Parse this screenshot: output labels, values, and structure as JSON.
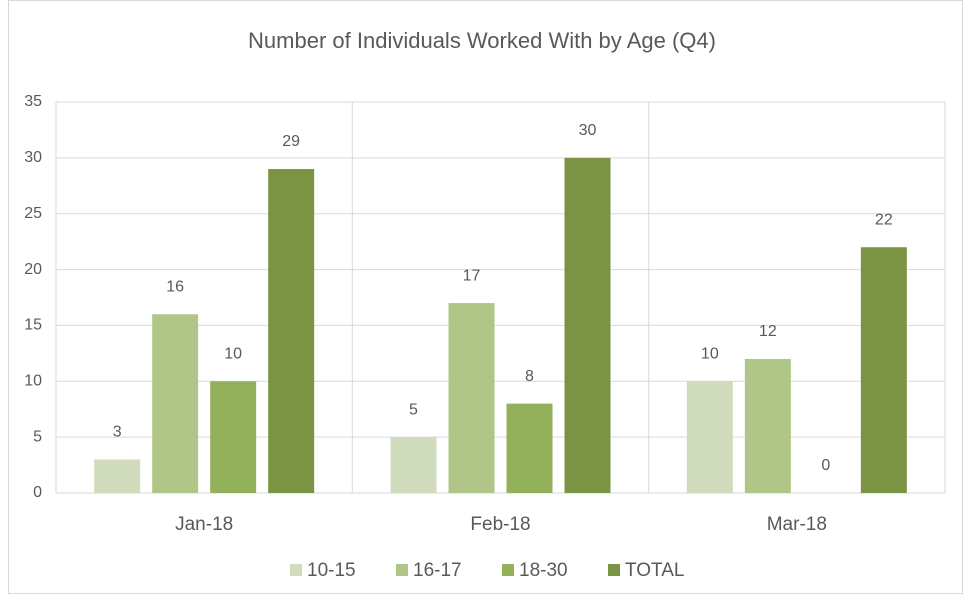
{
  "chart_data": {
    "type": "bar",
    "title": "Number of Individuals Worked With by Age (Q4)",
    "categories": [
      "Jan-18",
      "Feb-18",
      "Mar-18"
    ],
    "series": [
      {
        "name": "10-15",
        "color": "#d0dcbc",
        "values": [
          3,
          5,
          10
        ]
      },
      {
        "name": "16-17",
        "color": "#afc688",
        "values": [
          16,
          17,
          12
        ]
      },
      {
        "name": "18-30",
        "color": "#93b05a",
        "values": [
          10,
          8,
          0
        ]
      },
      {
        "name": "TOTAL",
        "color": "#7a9444",
        "values": [
          29,
          30,
          22
        ]
      }
    ],
    "ylim": [
      0,
      35
    ],
    "yticks": [
      0,
      5,
      10,
      15,
      20,
      25,
      30,
      35
    ],
    "grid": true,
    "legend": "bottom"
  }
}
